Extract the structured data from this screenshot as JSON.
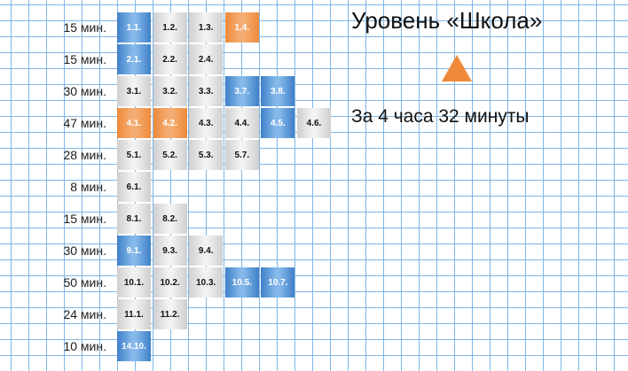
{
  "title": "Уровень «Школа»",
  "summary": "За 4 часа 32 минуты",
  "colors": {
    "gray": "#e6e6e6",
    "blue": "#5b98d8",
    "orange": "#ee8a3a",
    "grid": "#7fb6e6"
  },
  "arrow_icon": "up-triangle-icon",
  "rows": [
    {
      "time": "15 мин.",
      "tasks": [
        {
          "label": "1.1.",
          "color": "blue"
        },
        {
          "label": "1.2.",
          "color": "gray"
        },
        {
          "label": "1.3.",
          "color": "gray"
        },
        {
          "label": "1.4.",
          "color": "orange"
        }
      ]
    },
    {
      "time": "15 мин.",
      "tasks": [
        {
          "label": "2.1.",
          "color": "blue"
        },
        {
          "label": "2.2.",
          "color": "gray"
        },
        {
          "label": "2.4.",
          "color": "gray"
        }
      ]
    },
    {
      "time": "30 мин.",
      "tasks": [
        {
          "label": "3.1.",
          "color": "gray"
        },
        {
          "label": "3.2.",
          "color": "gray"
        },
        {
          "label": "3.3.",
          "color": "gray"
        },
        {
          "label": "3.7.",
          "color": "blue"
        },
        {
          "label": "3.8.",
          "color": "blue"
        }
      ]
    },
    {
      "time": "47 мин.",
      "tasks": [
        {
          "label": "4.1.",
          "color": "orange"
        },
        {
          "label": "4.2.",
          "color": "orange"
        },
        {
          "label": "4.3.",
          "color": "gray"
        },
        {
          "label": "4.4.",
          "color": "gray"
        },
        {
          "label": "4.5.",
          "color": "blue"
        },
        {
          "label": "4.6.",
          "color": "gray"
        }
      ]
    },
    {
      "time": "28 мин.",
      "tasks": [
        {
          "label": "5.1.",
          "color": "gray"
        },
        {
          "label": "5.2.",
          "color": "gray"
        },
        {
          "label": "5.3.",
          "color": "gray"
        },
        {
          "label": "5.7.",
          "color": "gray"
        }
      ]
    },
    {
      "time": "8 мин.",
      "tasks": [
        {
          "label": "6.1.",
          "color": "gray"
        }
      ]
    },
    {
      "time": "15 мин.",
      "tasks": [
        {
          "label": "8.1.",
          "color": "gray"
        },
        {
          "label": "8.2.",
          "color": "gray"
        }
      ]
    },
    {
      "time": "30 мин.",
      "tasks": [
        {
          "label": "9.1.",
          "color": "blue"
        },
        {
          "label": "9.3.",
          "color": "gray"
        },
        {
          "label": "9.4.",
          "color": "gray"
        }
      ]
    },
    {
      "time": "50 мин.",
      "tasks": [
        {
          "label": "10.1.",
          "color": "gray"
        },
        {
          "label": "10.2.",
          "color": "gray"
        },
        {
          "label": "10.3.",
          "color": "gray"
        },
        {
          "label": "10.5.",
          "color": "blue"
        },
        {
          "label": "10.7.",
          "color": "blue"
        }
      ]
    },
    {
      "time": "24 мин.",
      "tasks": [
        {
          "label": "11.1.",
          "color": "gray"
        },
        {
          "label": "11.2.",
          "color": "gray"
        }
      ]
    },
    {
      "time": "10 мин.",
      "tasks": [
        {
          "label": "14.10.",
          "color": "blue"
        }
      ]
    }
  ]
}
